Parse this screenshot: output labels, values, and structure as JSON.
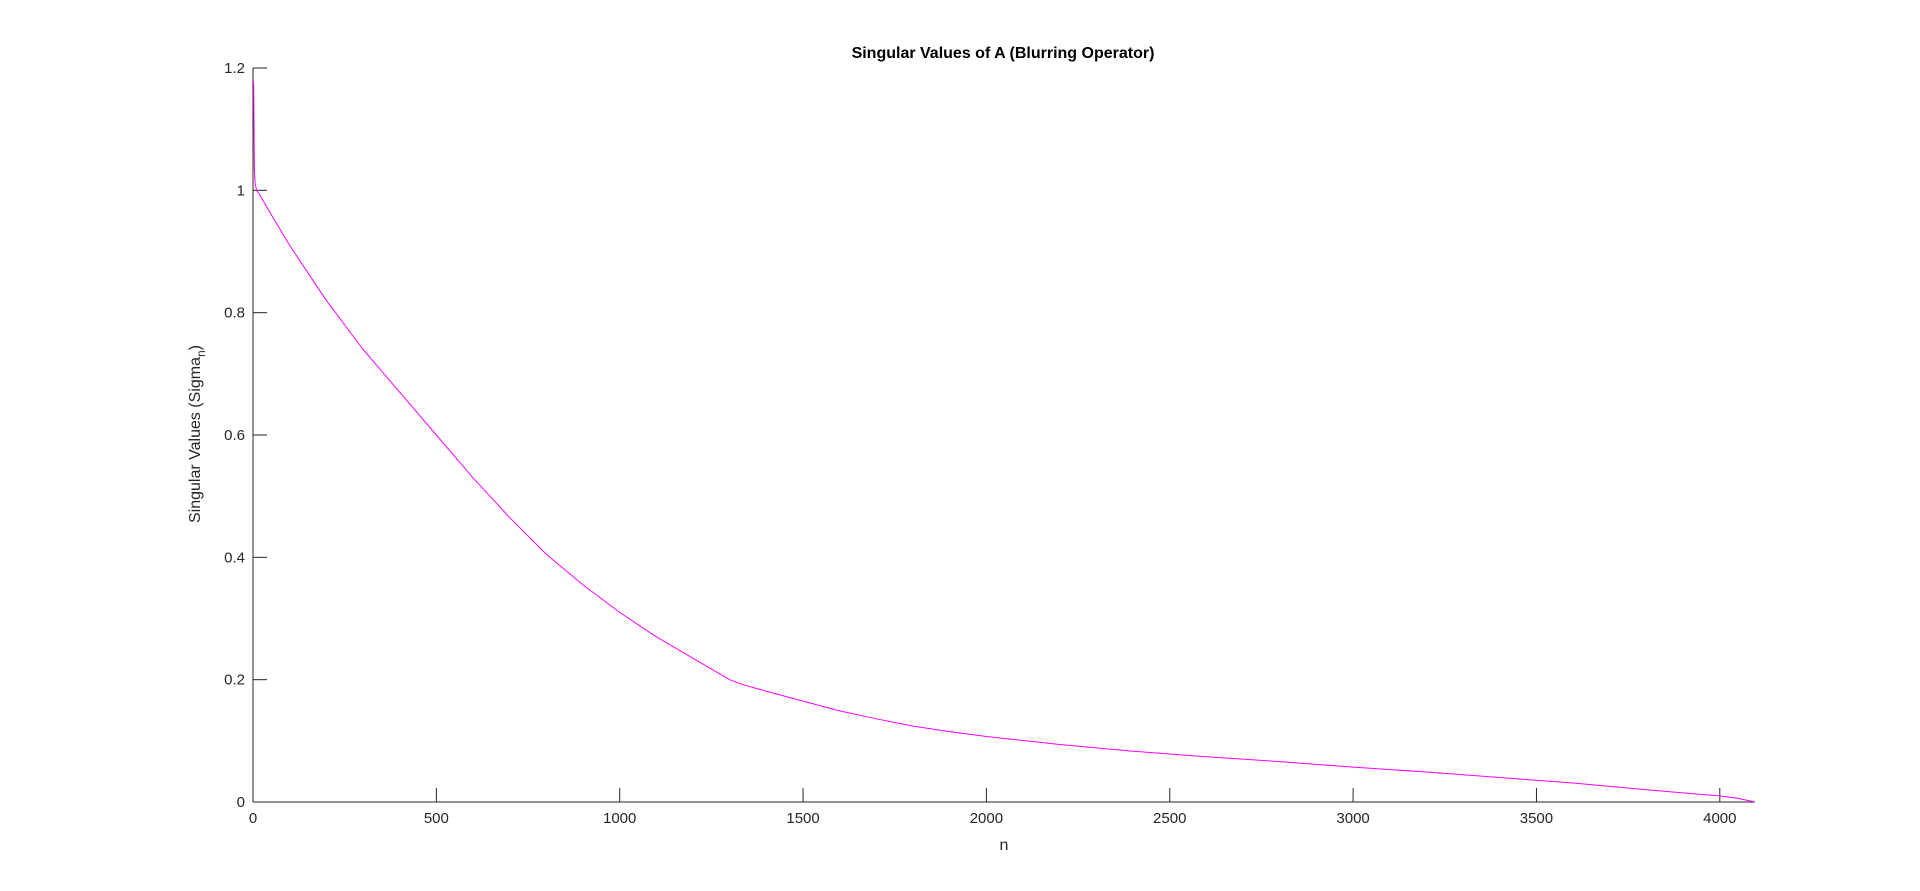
{
  "chart_data": {
    "type": "line",
    "title": "Singular Values of A (Blurring Operator)",
    "xlabel": "n",
    "ylabel": {
      "main": "Singular Values (Sigma",
      "subscript": "n",
      "close": ")"
    },
    "xlim": [
      0,
      4096
    ],
    "ylim": [
      0,
      1.2
    ],
    "xticks": [
      0,
      500,
      1000,
      1500,
      2000,
      2500,
      3000,
      3500,
      4000
    ],
    "yticks": [
      0,
      0.2,
      0.4,
      0.6,
      0.8,
      1,
      1.2
    ],
    "xtick_labels": [
      "0",
      "500",
      "1000",
      "1500",
      "2000",
      "2500",
      "3000",
      "3500",
      "4000"
    ],
    "ytick_labels": [
      "0",
      "0.2",
      "0.4",
      "0.6",
      "0.8",
      "1",
      "1.2"
    ],
    "grid": false,
    "series": [
      {
        "color": "#ff00ff",
        "x": [
          1,
          2,
          3,
          4,
          6,
          10,
          16,
          50,
          100,
          200,
          300,
          400,
          500,
          600,
          700,
          800,
          900,
          1000,
          1100,
          1200,
          1300,
          1330,
          1400,
          1500,
          1600,
          1700,
          1800,
          1900,
          2000,
          2200,
          2400,
          2600,
          2800,
          3000,
          3200,
          3400,
          3600,
          3800,
          3900,
          4000,
          4050,
          4096
        ],
        "y": [
          1.18,
          1.17,
          1.08,
          1.03,
          1.01,
          1.0,
          0.995,
          0.96,
          0.91,
          0.82,
          0.74,
          0.67,
          0.6,
          0.53,
          0.465,
          0.405,
          0.355,
          0.31,
          0.27,
          0.235,
          0.2,
          0.193,
          0.181,
          0.165,
          0.149,
          0.136,
          0.124,
          0.115,
          0.107,
          0.094,
          0.083,
          0.074,
          0.066,
          0.057,
          0.049,
          0.04,
          0.031,
          0.02,
          0.015,
          0.01,
          0.006,
          0.0
        ]
      }
    ]
  }
}
